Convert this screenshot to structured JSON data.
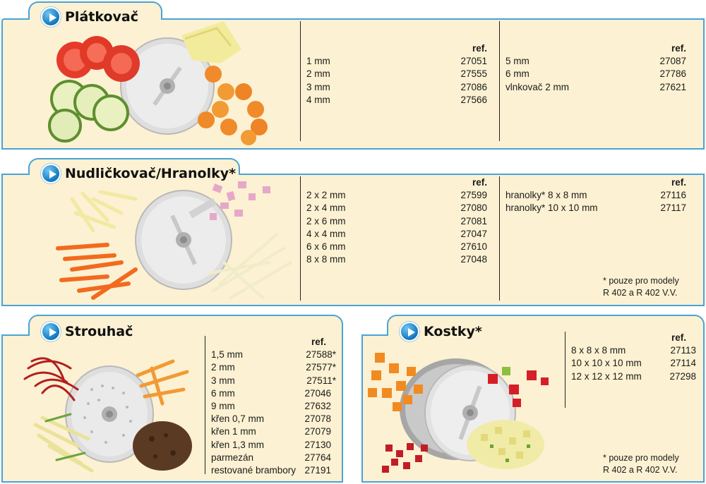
{
  "ref_label": "ref.",
  "sections": {
    "platkovac": {
      "title": "Plátkovač",
      "col1": [
        {
          "size": "1 mm",
          "ref": "27051"
        },
        {
          "size": "2 mm",
          "ref": "27555"
        },
        {
          "size": "3 mm",
          "ref": "27086"
        },
        {
          "size": "4 mm",
          "ref": "27566"
        }
      ],
      "col2": [
        {
          "size": "5 mm",
          "ref": "27087"
        },
        {
          "size": "6 mm",
          "ref": "27786"
        },
        {
          "size": "vlnkovač 2 mm",
          "ref": "27621"
        }
      ]
    },
    "nudlickovac": {
      "title": "Nudličkovač/Hranolky*",
      "col1": [
        {
          "size": "2 x 2 mm",
          "ref": "27599"
        },
        {
          "size": "2 x 4 mm",
          "ref": "27080"
        },
        {
          "size": "2 x 6 mm",
          "ref": "27081"
        },
        {
          "size": "4 x 4 mm",
          "ref": "27047"
        },
        {
          "size": "6 x 6 mm",
          "ref": "27610"
        },
        {
          "size": "8 x 8 mm",
          "ref": "27048"
        }
      ],
      "col2": [
        {
          "size": "hranolky* 8 x 8 mm",
          "ref": "27116"
        },
        {
          "size": "hranolky* 10 x 10 mm",
          "ref": "27117"
        }
      ],
      "note_line1": "* pouze pro modely",
      "note_line2": "R 402 a R 402 V.V."
    },
    "strouhac": {
      "title": "Strouhač",
      "col1": [
        {
          "size": "1,5 mm",
          "ref": "27588*"
        },
        {
          "size": "2 mm",
          "ref": "27577*"
        },
        {
          "size": "3 mm",
          "ref": "27511*"
        },
        {
          "size": "6 mm",
          "ref": "27046"
        },
        {
          "size": "9 mm",
          "ref": "27632"
        },
        {
          "size": "křen 0,7 mm",
          "ref": "27078"
        },
        {
          "size": "křen 1 mm",
          "ref": "27079"
        },
        {
          "size": "křen 1,3 mm",
          "ref": "27130"
        },
        {
          "size": "parmezán",
          "ref": "27764"
        },
        {
          "size": "restované brambory",
          "ref": "27191"
        }
      ]
    },
    "kostky": {
      "title": "Kostky*",
      "col1": [
        {
          "size": "8 x 8 x 8 mm",
          "ref": "27113"
        },
        {
          "size": "10 x 10 x 10 mm",
          "ref": "27114"
        },
        {
          "size": "12 x 12 x 12 mm",
          "ref": "27298"
        }
      ],
      "note_line1": "* pouze pro modely",
      "note_line2": "R 402 a R 402 V.V."
    }
  },
  "colors": {
    "panel_bg": "#fcf1d2",
    "border": "#4aa3d4",
    "play_icon": "#1277bd"
  },
  "icons": {
    "section_marker": "play-circle-icon"
  }
}
